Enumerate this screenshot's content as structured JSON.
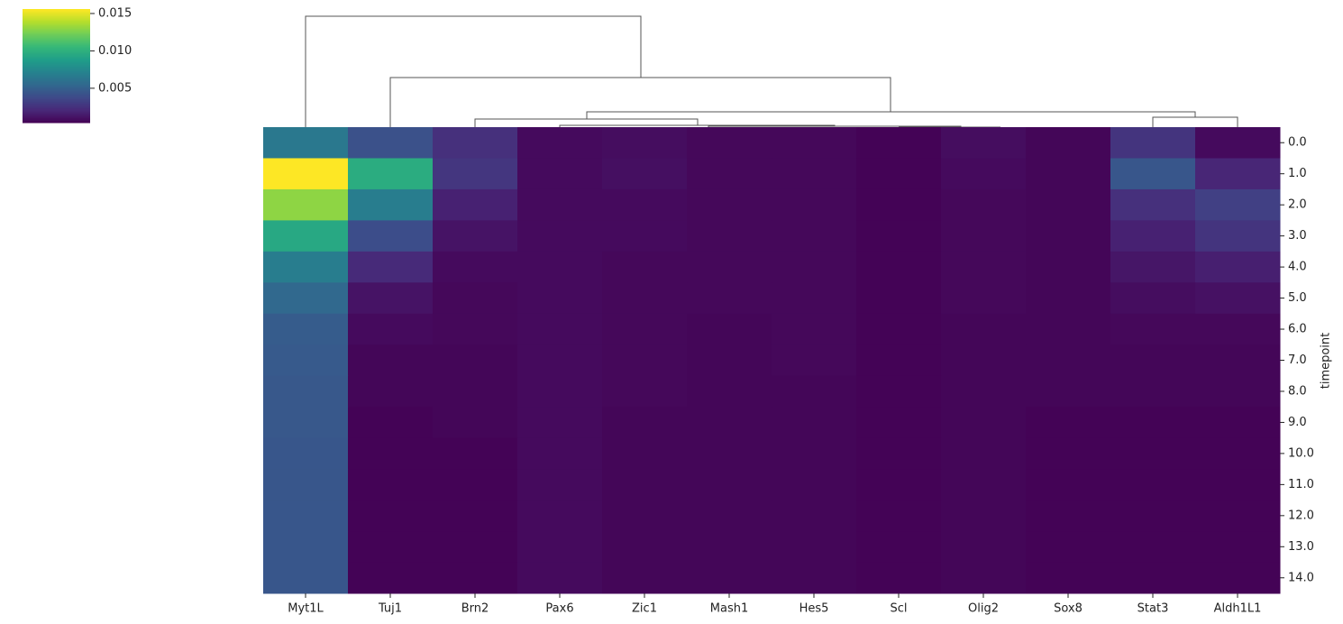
{
  "chart_data": {
    "type": "heatmap",
    "colormap": "viridis",
    "x_categories": [
      "Myt1L",
      "Tuj1",
      "Brn2",
      "Pax6",
      "Zic1",
      "Mash1",
      "Hes5",
      "Scl",
      "Olig2",
      "Sox8",
      "Stat3",
      "Aldh1L1"
    ],
    "y_categories": [
      "0.0",
      "1.0",
      "2.0",
      "3.0",
      "4.0",
      "5.0",
      "6.0",
      "7.0",
      "8.0",
      "9.0",
      "10.0",
      "11.0",
      "12.0",
      "13.0",
      "14.0"
    ],
    "y_label": "timepoint",
    "values": [
      [
        0.0065,
        0.0042,
        0.0025,
        0.0008,
        0.0009,
        0.0007,
        0.0007,
        0.0005,
        0.0009,
        0.0006,
        0.0027,
        0.0008
      ],
      [
        0.0156,
        0.0098,
        0.0028,
        0.0008,
        0.001,
        0.0007,
        0.0007,
        0.0005,
        0.0008,
        0.0006,
        0.0045,
        0.002
      ],
      [
        0.013,
        0.0068,
        0.0018,
        0.0008,
        0.0008,
        0.0007,
        0.0007,
        0.0005,
        0.0007,
        0.0006,
        0.0025,
        0.0033
      ],
      [
        0.0095,
        0.004,
        0.0012,
        0.0008,
        0.0008,
        0.0007,
        0.0007,
        0.0005,
        0.0007,
        0.0006,
        0.0018,
        0.0027
      ],
      [
        0.0068,
        0.0022,
        0.0008,
        0.0008,
        0.0007,
        0.0007,
        0.0007,
        0.0005,
        0.0007,
        0.0006,
        0.0013,
        0.0017
      ],
      [
        0.0055,
        0.0012,
        0.0007,
        0.0008,
        0.0007,
        0.0007,
        0.0007,
        0.0005,
        0.0007,
        0.0006,
        0.0009,
        0.0011
      ],
      [
        0.0048,
        0.0008,
        0.0007,
        0.0008,
        0.0007,
        0.0006,
        0.0007,
        0.0005,
        0.0006,
        0.0006,
        0.0007,
        0.0007
      ],
      [
        0.0047,
        0.0006,
        0.0006,
        0.0008,
        0.0007,
        0.0006,
        0.0007,
        0.0005,
        0.0006,
        0.0006,
        0.0006,
        0.0006
      ],
      [
        0.0046,
        0.0006,
        0.0006,
        0.0008,
        0.0007,
        0.0006,
        0.0006,
        0.0005,
        0.0006,
        0.0006,
        0.0006,
        0.0006
      ],
      [
        0.0046,
        0.0005,
        0.0006,
        0.0008,
        0.0006,
        0.0006,
        0.0006,
        0.0005,
        0.0006,
        0.0005,
        0.0005,
        0.0005
      ],
      [
        0.0045,
        0.0005,
        0.0005,
        0.0008,
        0.0006,
        0.0006,
        0.0006,
        0.0005,
        0.0006,
        0.0005,
        0.0005,
        0.0005
      ],
      [
        0.0045,
        0.0005,
        0.0005,
        0.0008,
        0.0006,
        0.0006,
        0.0006,
        0.0005,
        0.0006,
        0.0005,
        0.0005,
        0.0005
      ],
      [
        0.0045,
        0.0005,
        0.0005,
        0.0008,
        0.0006,
        0.0006,
        0.0006,
        0.0005,
        0.0006,
        0.0005,
        0.0005,
        0.0005
      ],
      [
        0.0045,
        0.0005,
        0.0005,
        0.0008,
        0.0006,
        0.0006,
        0.0006,
        0.0005,
        0.0006,
        0.0005,
        0.0005,
        0.0005
      ],
      [
        0.0045,
        0.0005,
        0.0005,
        0.0008,
        0.0006,
        0.0006,
        0.0006,
        0.0005,
        0.0006,
        0.0005,
        0.0005,
        0.0005
      ]
    ],
    "vlim": [
      0.0004,
      0.0156
    ],
    "colorbar_ticks": [
      0.005,
      {
        "value": 0.01,
        "label": "0.010"
      },
      0.015
    ]
  }
}
